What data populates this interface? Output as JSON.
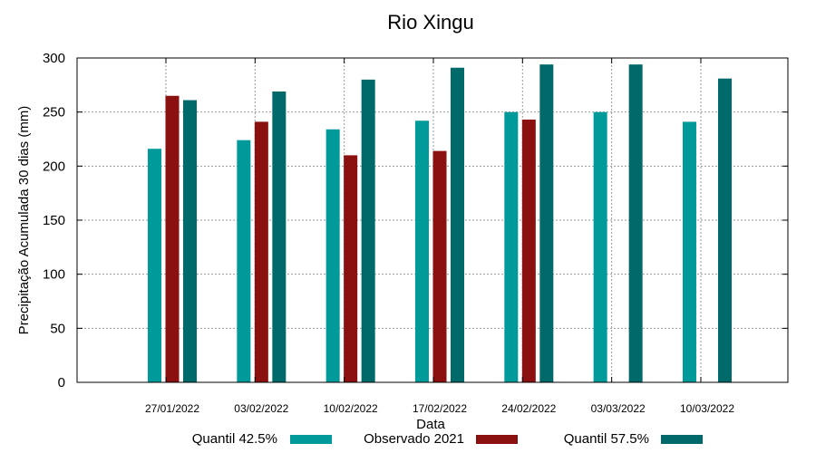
{
  "chart_data": {
    "type": "bar",
    "title": "Rio Xingu",
    "xlabel": "Data",
    "ylabel": "Precipitação Acumulada 30 dias (mm)",
    "ylim": [
      0,
      300
    ],
    "yticks": [
      0,
      50,
      100,
      150,
      200,
      250,
      300
    ],
    "grid": true,
    "legend_position": "bottom",
    "categories": [
      "27/01/2022",
      "03/02/2022",
      "10/02/2022",
      "17/02/2022",
      "24/02/2022",
      "03/03/2022",
      "10/03/2022"
    ],
    "series": [
      {
        "name": "Quantil 42.5%",
        "color": "#009a9a",
        "values": [
          216,
          224,
          234,
          242,
          250,
          250,
          241
        ]
      },
      {
        "name": "Observado 2021",
        "color": "#8b1010",
        "values": [
          265,
          241,
          210,
          214,
          243,
          null,
          null
        ]
      },
      {
        "name": "Quantil 57.5%",
        "color": "#006a6a",
        "values": [
          261,
          269,
          280,
          291,
          294,
          294,
          281
        ]
      }
    ]
  }
}
